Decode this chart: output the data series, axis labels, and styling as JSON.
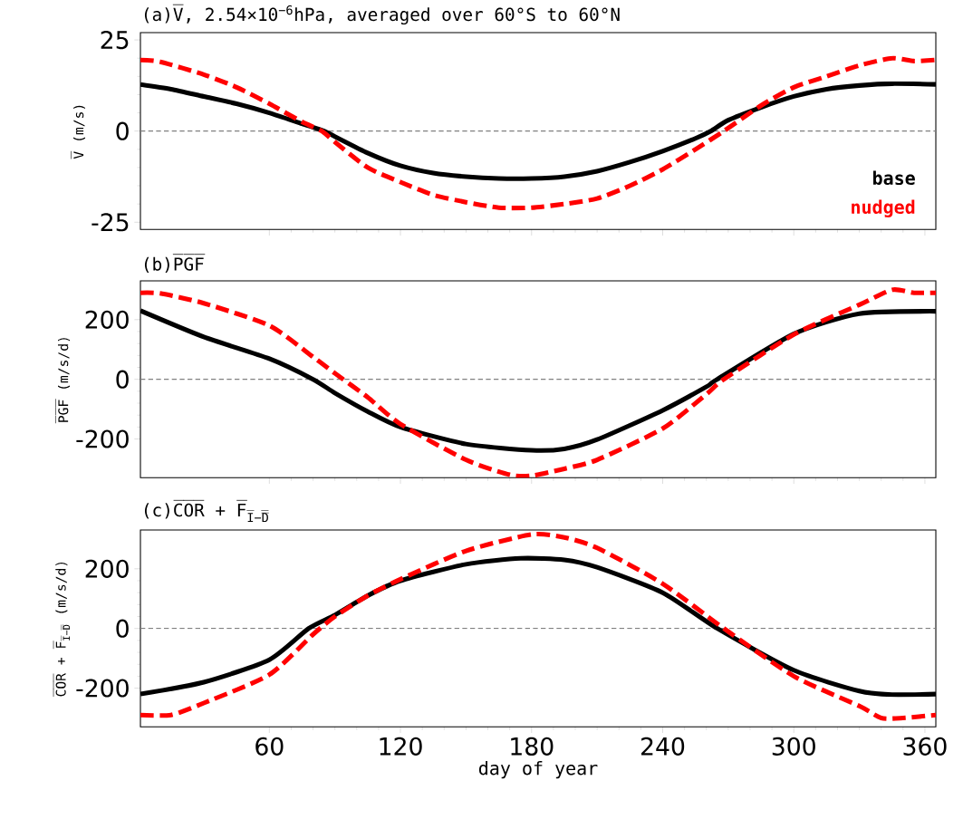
{
  "chart_data": [
    {
      "type": "line",
      "title": "(a)V̅, 2.54×10$^{−6}$hPa, averaged over 60°S to 60°N",
      "ylabel": "V̅ (m/s)",
      "xlim": [
        1,
        365
      ],
      "ylim": [
        -27,
        27
      ],
      "xticks": [
        60,
        120,
        180,
        240,
        300,
        360
      ],
      "yticks": [
        -25,
        0,
        25
      ],
      "tick_labels": "y",
      "legend": "bottom right",
      "ref_lines": [
        {
          "axis": "y",
          "value": 0,
          "color": "#808080",
          "line_style": "dashed"
        }
      ],
      "series": [
        {
          "name": "base",
          "color": "#000000",
          "line_style": "solid",
          "x": [
            1,
            15,
            30,
            45,
            60,
            75,
            85,
            90,
            105,
            120,
            135,
            150,
            165,
            180,
            195,
            210,
            225,
            240,
            255,
            262,
            270,
            285,
            300,
            315,
            330,
            345,
            365
          ],
          "values": [
            12.8,
            11.5,
            9.5,
            7.5,
            5,
            2,
            0,
            -1.5,
            -6,
            -9.5,
            -11.5,
            -12.5,
            -13,
            -13,
            -12.5,
            -11,
            -8.5,
            -5.5,
            -2,
            0,
            3,
            6.5,
            9.5,
            11.5,
            12.5,
            13,
            12.8
          ]
        },
        {
          "name": "nudged",
          "color": "#ff0000",
          "line_style": "dashed",
          "x": [
            1,
            10,
            30,
            45,
            60,
            75,
            84,
            90,
            105,
            120,
            135,
            150,
            165,
            180,
            195,
            210,
            225,
            240,
            255,
            268,
            285,
            300,
            315,
            330,
            345,
            355,
            365
          ],
          "values": [
            19.5,
            19,
            15.5,
            12,
            7.5,
            2.5,
            0,
            -3,
            -10,
            -14,
            -17.5,
            -19.5,
            -21,
            -21,
            -20,
            -18.5,
            -15,
            -10.5,
            -5,
            0,
            7,
            12,
            15,
            18,
            20,
            19.2,
            19.5
          ]
        }
      ]
    },
    {
      "type": "line",
      "title": "(b)P̅G̅F̅",
      "ylabel": "P̅G̅F̅ (m/s/d)",
      "xlim": [
        1,
        365
      ],
      "ylim": [
        -330,
        330
      ],
      "xticks": [
        60,
        120,
        180,
        240,
        300,
        360
      ],
      "yticks": [
        -200,
        0,
        200
      ],
      "tick_labels": "y",
      "ref_lines": [
        {
          "axis": "y",
          "value": 0,
          "color": "#808080",
          "line_style": "dashed"
        }
      ],
      "series": [
        {
          "color": "#000000",
          "line_style": "solid",
          "x": [
            1,
            30,
            60,
            80,
            90,
            105,
            120,
            150,
            180,
            195,
            210,
            240,
            260,
            265,
            300,
            330,
            365
          ],
          "values": [
            230,
            142,
            69,
            0,
            -46,
            -108,
            -160,
            -217,
            -238,
            -233,
            -202,
            -104,
            -25,
            0,
            152,
            220,
            228
          ]
        },
        {
          "color": "#ff0000",
          "line_style": "dashed",
          "x": [
            1,
            10,
            30,
            60,
            80,
            90,
            105,
            120,
            150,
            170,
            180,
            195,
            210,
            240,
            260,
            268,
            300,
            330,
            345,
            355,
            365
          ],
          "values": [
            290,
            288,
            255,
            180,
            75,
            20,
            -60,
            -150,
            -270,
            -320,
            -323,
            -300,
            -270,
            -165,
            -50,
            0,
            150,
            250,
            300,
            290,
            290
          ]
        }
      ]
    },
    {
      "type": "line",
      "title": "(c)C̅O̅R̅ + F̅$_{I̅−̅D̅}$",
      "ylabel": "C̅O̅R̅ + F̅$_{I̅−̅D̅}$ (m/s/d)",
      "xlabel": "day of year",
      "xlim": [
        1,
        365
      ],
      "ylim": [
        -330,
        330
      ],
      "xticks": [
        60,
        120,
        180,
        240,
        300,
        360
      ],
      "yticks": [
        -200,
        0,
        200
      ],
      "ref_lines": [
        {
          "axis": "y",
          "value": 0,
          "color": "#808080",
          "line_style": "dashed"
        }
      ],
      "series": [
        {
          "color": "#000000",
          "line_style": "solid",
          "x": [
            1,
            30,
            60,
            78,
            90,
            105,
            120,
            150,
            175,
            195,
            210,
            240,
            265,
            300,
            330,
            345,
            365
          ],
          "values": [
            -220,
            -180,
            -105,
            0,
            45,
            110,
            160,
            215,
            235,
            230,
            205,
            120,
            0,
            -140,
            -210,
            -222,
            -220
          ]
        },
        {
          "color": "#ff0000",
          "line_style": "dashed",
          "x": [
            1,
            15,
            30,
            60,
            80,
            90,
            105,
            120,
            150,
            180,
            195,
            210,
            240,
            268,
            300,
            330,
            340,
            350,
            365
          ],
          "values": [
            -290,
            -290,
            -250,
            -155,
            -20,
            40,
            110,
            165,
            260,
            315,
            305,
            270,
            150,
            0,
            -160,
            -260,
            -300,
            -300,
            -290
          ]
        }
      ]
    }
  ]
}
